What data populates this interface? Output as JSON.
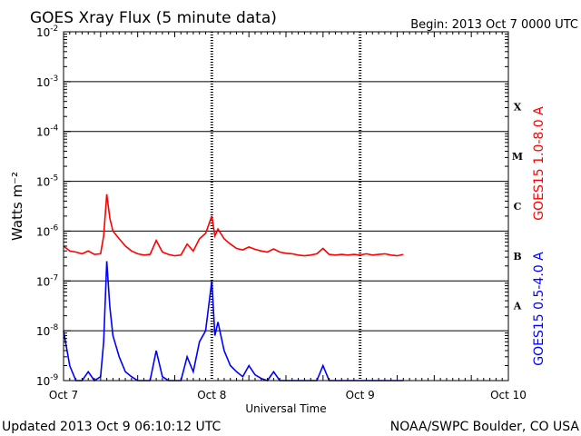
{
  "header": {
    "title": "GOES Xray Flux (5 minute data)",
    "begin": "Begin:  2013 Oct 7 0000 UTC"
  },
  "footer": {
    "updated": "Updated 2013 Oct  9 06:10:12 UTC",
    "credit": "NOAA/SWPC Boulder, CO USA"
  },
  "chart_data": {
    "type": "line",
    "title": "GOES Xray Flux (5 minute data)",
    "xlabel": "Universal Time",
    "ylabel": "Watts m⁻²",
    "y_scale": "log",
    "ylim": [
      1e-09,
      0.01
    ],
    "xlim": [
      "2013-10-07 00:00",
      "2013-10-10 00:00"
    ],
    "x_ticks": [
      "Oct 7",
      "Oct 8",
      "Oct 9",
      "Oct 10"
    ],
    "y_ticks": [
      {
        "base": "10",
        "exp": "-9"
      },
      {
        "base": "10",
        "exp": "-8"
      },
      {
        "base": "10",
        "exp": "-7"
      },
      {
        "base": "10",
        "exp": "-6"
      },
      {
        "base": "10",
        "exp": "-5"
      },
      {
        "base": "10",
        "exp": "-4"
      },
      {
        "base": "10",
        "exp": "-3"
      },
      {
        "base": "10",
        "exp": "-2"
      }
    ],
    "flare_classes": [
      {
        "label": "A",
        "flux": 3.16e-08
      },
      {
        "label": "B",
        "flux": 3.16e-07
      },
      {
        "label": "C",
        "flux": 3.16e-06
      },
      {
        "label": "M",
        "flux": 3.16e-05
      },
      {
        "label": "X",
        "flux": 0.000316
      }
    ],
    "grid": true,
    "series": [
      {
        "name": "GOES15 1.0-8.0 A",
        "color": "#ff0000",
        "points": [
          [
            "2013-10-07 00:00",
            5e-07
          ],
          [
            "2013-10-07 01:00",
            4e-07
          ],
          [
            "2013-10-07 02:00",
            3.8e-07
          ],
          [
            "2013-10-07 03:00",
            3.5e-07
          ],
          [
            "2013-10-07 04:00",
            4e-07
          ],
          [
            "2013-10-07 05:00",
            3.4e-07
          ],
          [
            "2013-10-07 06:00",
            3.5e-07
          ],
          [
            "2013-10-07 06:30",
            8e-07
          ],
          [
            "2013-10-07 07:00",
            5.5e-06
          ],
          [
            "2013-10-07 07:30",
            1.8e-06
          ],
          [
            "2013-10-07 08:00",
            1e-06
          ],
          [
            "2013-10-07 09:00",
            7e-07
          ],
          [
            "2013-10-07 10:00",
            5e-07
          ],
          [
            "2013-10-07 11:00",
            4e-07
          ],
          [
            "2013-10-07 12:00",
            3.5e-07
          ],
          [
            "2013-10-07 13:00",
            3.3e-07
          ],
          [
            "2013-10-07 14:00",
            3.4e-07
          ],
          [
            "2013-10-07 15:00",
            6.5e-07
          ],
          [
            "2013-10-07 16:00",
            3.8e-07
          ],
          [
            "2013-10-07 17:00",
            3.4e-07
          ],
          [
            "2013-10-07 18:00",
            3.2e-07
          ],
          [
            "2013-10-07 19:00",
            3.3e-07
          ],
          [
            "2013-10-07 20:00",
            5.5e-07
          ],
          [
            "2013-10-07 21:00",
            4e-07
          ],
          [
            "2013-10-07 22:00",
            7e-07
          ],
          [
            "2013-10-07 23:00",
            9e-07
          ],
          [
            "2013-10-08 00:00",
            2e-06
          ],
          [
            "2013-10-08 00:30",
            8e-07
          ],
          [
            "2013-10-08 01:00",
            1.1e-06
          ],
          [
            "2013-10-08 02:00",
            7e-07
          ],
          [
            "2013-10-08 03:00",
            5.5e-07
          ],
          [
            "2013-10-08 04:00",
            4.5e-07
          ],
          [
            "2013-10-08 05:00",
            4.2e-07
          ],
          [
            "2013-10-08 06:00",
            4.8e-07
          ],
          [
            "2013-10-08 07:00",
            4.3e-07
          ],
          [
            "2013-10-08 08:00",
            4e-07
          ],
          [
            "2013-10-08 09:00",
            3.8e-07
          ],
          [
            "2013-10-08 10:00",
            4.4e-07
          ],
          [
            "2013-10-08 11:00",
            3.8e-07
          ],
          [
            "2013-10-08 12:00",
            3.6e-07
          ],
          [
            "2013-10-08 13:00",
            3.5e-07
          ],
          [
            "2013-10-08 14:00",
            3.3e-07
          ],
          [
            "2013-10-08 15:00",
            3.2e-07
          ],
          [
            "2013-10-08 16:00",
            3.3e-07
          ],
          [
            "2013-10-08 17:00",
            3.5e-07
          ],
          [
            "2013-10-08 18:00",
            4.5e-07
          ],
          [
            "2013-10-08 19:00",
            3.4e-07
          ],
          [
            "2013-10-08 20:00",
            3.3e-07
          ],
          [
            "2013-10-08 21:00",
            3.4e-07
          ],
          [
            "2013-10-08 22:00",
            3.3e-07
          ],
          [
            "2013-10-08 23:00",
            3.4e-07
          ],
          [
            "2013-10-09 00:00",
            3.3e-07
          ],
          [
            "2013-10-09 01:00",
            3.5e-07
          ],
          [
            "2013-10-09 02:00",
            3.3e-07
          ],
          [
            "2013-10-09 03:00",
            3.4e-07
          ],
          [
            "2013-10-09 04:00",
            3.5e-07
          ],
          [
            "2013-10-09 05:00",
            3.3e-07
          ],
          [
            "2013-10-09 06:00",
            3.2e-07
          ],
          [
            "2013-10-09 07:00",
            3.4e-07
          ]
        ]
      },
      {
        "name": "GOES15 0.5-4.0 A",
        "color": "#0000ff",
        "points": [
          [
            "2013-10-07 00:00",
            1e-08
          ],
          [
            "2013-10-07 01:00",
            2e-09
          ],
          [
            "2013-10-07 02:00",
            1e-09
          ],
          [
            "2013-10-07 03:00",
            1e-09
          ],
          [
            "2013-10-07 04:00",
            1.5e-09
          ],
          [
            "2013-10-07 05:00",
            1e-09
          ],
          [
            "2013-10-07 06:00",
            1.2e-09
          ],
          [
            "2013-10-07 06:30",
            6e-09
          ],
          [
            "2013-10-07 07:00",
            2.5e-07
          ],
          [
            "2013-10-07 07:30",
            3e-08
          ],
          [
            "2013-10-07 08:00",
            8e-09
          ],
          [
            "2013-10-07 09:00",
            3e-09
          ],
          [
            "2013-10-07 10:00",
            1.5e-09
          ],
          [
            "2013-10-07 11:00",
            1.2e-09
          ],
          [
            "2013-10-07 12:00",
            1e-09
          ],
          [
            "2013-10-07 13:00",
            1e-09
          ],
          [
            "2013-10-07 14:00",
            1e-09
          ],
          [
            "2013-10-07 15:00",
            4e-09
          ],
          [
            "2013-10-07 16:00",
            1.2e-09
          ],
          [
            "2013-10-07 17:00",
            1e-09
          ],
          [
            "2013-10-07 18:00",
            1e-09
          ],
          [
            "2013-10-07 19:00",
            1e-09
          ],
          [
            "2013-10-07 20:00",
            3e-09
          ],
          [
            "2013-10-07 21:00",
            1.5e-09
          ],
          [
            "2013-10-07 22:00",
            6e-09
          ],
          [
            "2013-10-07 23:00",
            1e-08
          ],
          [
            "2013-10-08 00:00",
            1e-07
          ],
          [
            "2013-10-08 00:30",
            8e-09
          ],
          [
            "2013-10-08 01:00",
            1.5e-08
          ],
          [
            "2013-10-08 02:00",
            4e-09
          ],
          [
            "2013-10-08 03:00",
            2e-09
          ],
          [
            "2013-10-08 04:00",
            1.5e-09
          ],
          [
            "2013-10-08 05:00",
            1.2e-09
          ],
          [
            "2013-10-08 06:00",
            2e-09
          ],
          [
            "2013-10-08 07:00",
            1.3e-09
          ],
          [
            "2013-10-08 08:00",
            1.1e-09
          ],
          [
            "2013-10-08 09:00",
            1e-09
          ],
          [
            "2013-10-08 10:00",
            1.5e-09
          ],
          [
            "2013-10-08 11:00",
            1e-09
          ],
          [
            "2013-10-08 12:00",
            1e-09
          ],
          [
            "2013-10-08 13:00",
            1e-09
          ],
          [
            "2013-10-08 14:00",
            1e-09
          ],
          [
            "2013-10-08 15:00",
            1e-09
          ],
          [
            "2013-10-08 16:00",
            1e-09
          ],
          [
            "2013-10-08 17:00",
            1e-09
          ],
          [
            "2013-10-08 18:00",
            2e-09
          ],
          [
            "2013-10-08 19:00",
            1e-09
          ],
          [
            "2013-10-08 20:00",
            1e-09
          ],
          [
            "2013-10-08 21:00",
            1e-09
          ],
          [
            "2013-10-08 22:00",
            1e-09
          ],
          [
            "2013-10-08 23:00",
            1e-09
          ],
          [
            "2013-10-09 00:00",
            1e-09
          ],
          [
            "2013-10-09 01:00",
            1e-09
          ],
          [
            "2013-10-09 02:00",
            1e-09
          ],
          [
            "2013-10-09 03:00",
            1e-09
          ],
          [
            "2013-10-09 04:00",
            1e-09
          ],
          [
            "2013-10-09 05:00",
            1e-09
          ],
          [
            "2013-10-09 06:00",
            1e-09
          ],
          [
            "2013-10-09 07:00",
            1e-09
          ]
        ]
      }
    ]
  }
}
